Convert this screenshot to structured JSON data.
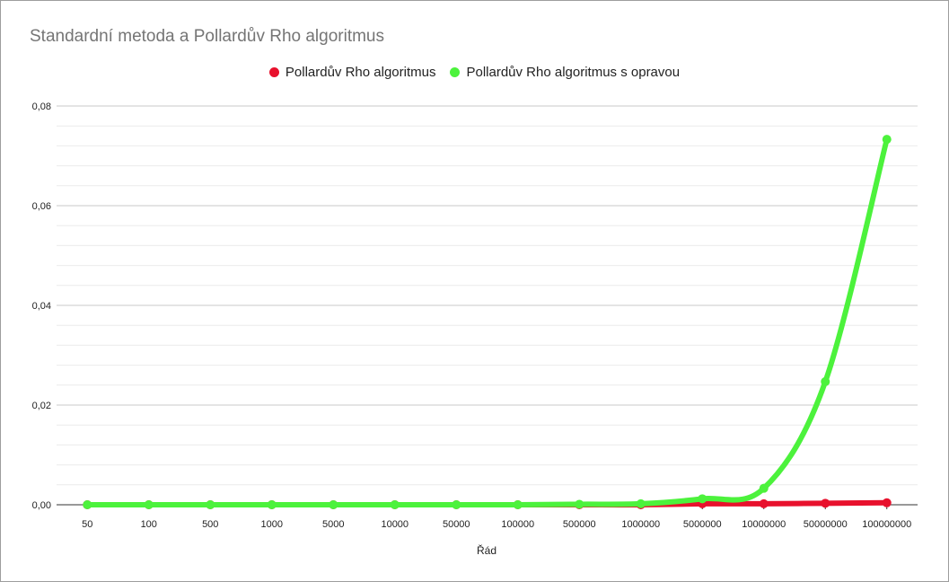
{
  "chart_data": {
    "type": "line",
    "title": "Standardní metoda a Pollardův Rho algoritmus",
    "xlabel": "Řád",
    "ylabel": "",
    "categories": [
      "50",
      "100",
      "500",
      "1000",
      "5000",
      "10000",
      "50000",
      "100000",
      "500000",
      "1000000",
      "5000000",
      "10000000",
      "50000000",
      "100000000"
    ],
    "ylim": [
      0,
      0.08
    ],
    "yticks": [
      0,
      0.02,
      0.04,
      0.06,
      0.08
    ],
    "ytick_labels": [
      "0,00",
      "0,02",
      "0,04",
      "0,06",
      "0,08"
    ],
    "grid": true,
    "legend_position": "top",
    "series": [
      {
        "name": "Pollardův Rho algoritmus",
        "color": "#e8112d",
        "values": [
          0,
          0,
          0,
          0,
          0,
          0,
          0,
          0,
          0,
          0,
          0.0002,
          0.0002,
          0.0003,
          0.0004
        ]
      },
      {
        "name": "Pollardův Rho algoritmus s opravou",
        "color": "#4cf23c",
        "values": [
          0,
          0,
          0,
          0,
          0,
          0,
          0,
          0,
          0.0001,
          0.0002,
          0.0012,
          0.0033,
          0.0247,
          0.0733
        ]
      }
    ]
  }
}
